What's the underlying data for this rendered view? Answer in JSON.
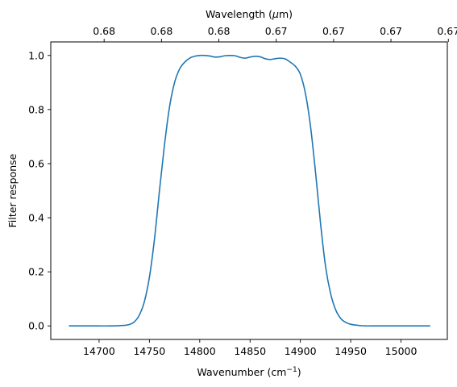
{
  "chart_data": {
    "type": "line",
    "xlabel": {
      "main": "Wavenumber (cm",
      "sup": "−1",
      "tail": ")"
    },
    "ylabel": "Filter response",
    "top_xlabel": {
      "main": "Wavelength (",
      "mu": "μ",
      "tail": "m)"
    },
    "xlim": [
      14652,
      15046
    ],
    "ylim": [
      -0.05,
      1.05
    ],
    "x_ticks": [
      {
        "value": 14700,
        "label": "14700"
      },
      {
        "value": 14750,
        "label": "14750"
      },
      {
        "value": 14800,
        "label": "14800"
      },
      {
        "value": 14850,
        "label": "14850"
      },
      {
        "value": 14900,
        "label": "14900"
      },
      {
        "value": 14950,
        "label": "14950"
      },
      {
        "value": 15000,
        "label": "15000"
      }
    ],
    "y_ticks": [
      {
        "value": 0.0,
        "label": "0.0"
      },
      {
        "value": 0.2,
        "label": "0.2"
      },
      {
        "value": 0.4,
        "label": "0.4"
      },
      {
        "value": 0.6,
        "label": "0.6"
      },
      {
        "value": 0.8,
        "label": "0.8"
      },
      {
        "value": 1.0,
        "label": "1.0"
      }
    ],
    "top_ticks": [
      {
        "value": 14705,
        "label": "0.68"
      },
      {
        "value": 14762,
        "label": "0.68"
      },
      {
        "value": 14819,
        "label": "0.68"
      },
      {
        "value": 14876,
        "label": "0.67"
      },
      {
        "value": 14933,
        "label": "0.67"
      },
      {
        "value": 14990,
        "label": "0.67"
      },
      {
        "value": 15047,
        "label": "0.67"
      }
    ],
    "grid": false,
    "series": [
      {
        "color": "#1f77b4",
        "x": [
          14670,
          14690,
          14700,
          14710,
          14720,
          14725,
          14730,
          14735,
          14740,
          14745,
          14750,
          14755,
          14760,
          14765,
          14770,
          14775,
          14780,
          14785,
          14790,
          14795,
          14800,
          14805,
          14810,
          14815,
          14820,
          14825,
          14830,
          14835,
          14840,
          14845,
          14850,
          14855,
          14860,
          14865,
          14870,
          14875,
          14880,
          14885,
          14890,
          14895,
          14900,
          14905,
          14910,
          14915,
          14920,
          14925,
          14930,
          14935,
          14940,
          14945,
          14950,
          14955,
          14960,
          14965,
          14970,
          14980,
          15000,
          15029
        ],
        "y": [
          0.0,
          0.0,
          0.0,
          0.0,
          0.001,
          0.002,
          0.005,
          0.015,
          0.04,
          0.09,
          0.18,
          0.32,
          0.5,
          0.67,
          0.81,
          0.9,
          0.95,
          0.975,
          0.99,
          0.997,
          1.0,
          1.0,
          0.998,
          0.994,
          0.995,
          0.999,
          1.0,
          0.999,
          0.993,
          0.99,
          0.994,
          0.997,
          0.995,
          0.988,
          0.985,
          0.988,
          0.99,
          0.987,
          0.975,
          0.96,
          0.93,
          0.86,
          0.74,
          0.57,
          0.38,
          0.22,
          0.12,
          0.06,
          0.028,
          0.013,
          0.006,
          0.003,
          0.001,
          0.0,
          0.0,
          0.0,
          0.0,
          0.0
        ]
      }
    ]
  }
}
